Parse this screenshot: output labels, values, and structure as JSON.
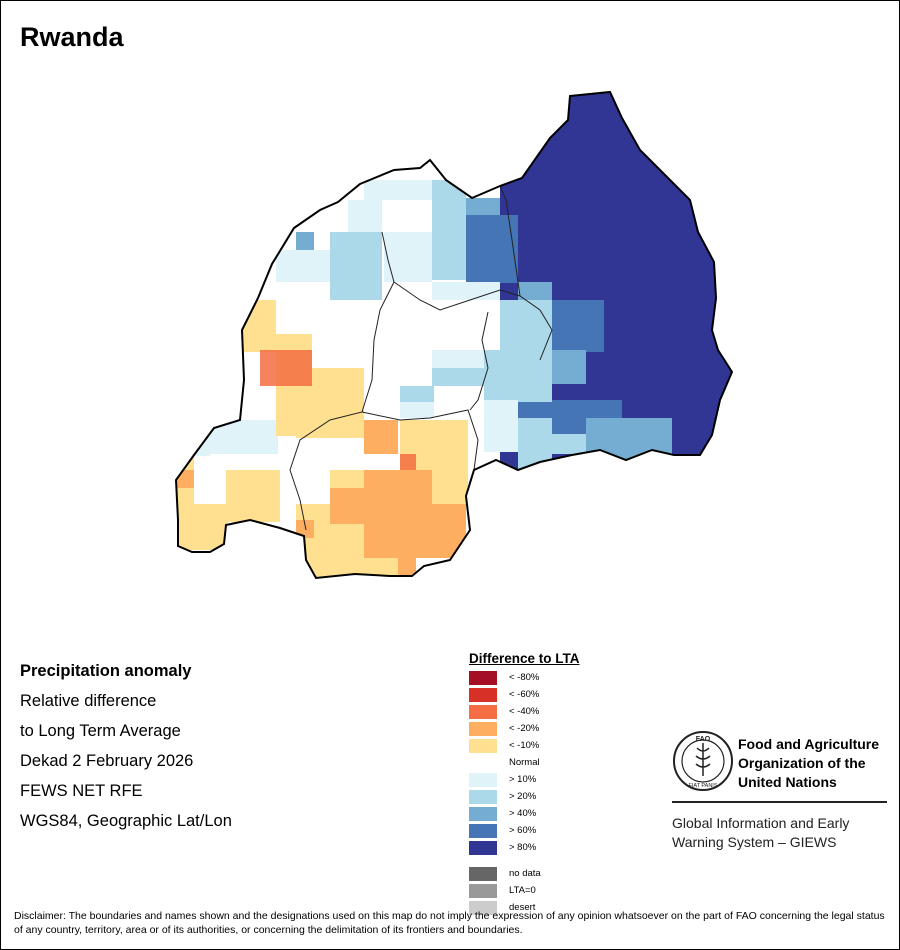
{
  "title": "Rwanda",
  "info": {
    "lines": [
      "Precipitation anomaly",
      "Relative difference",
      "to Long Term Average",
      "Dekad 2 February 2026",
      "FEWS NET RFE",
      "WGS84, Geographic Lat/Lon"
    ]
  },
  "legend": {
    "title": "Difference to LTA",
    "items": [
      {
        "label": "< -80%",
        "color": "#a50f26"
      },
      {
        "label": "< -60%",
        "color": "#d73027"
      },
      {
        "label": "< -40%",
        "color": "#f46d43"
      },
      {
        "label": "< -20%",
        "color": "#fdae61"
      },
      {
        "label": "< -10%",
        "color": "#fee090"
      },
      {
        "label": "Normal",
        "color": "#ffffff"
      },
      {
        "label": "> 10%",
        "color": "#e0f3f8"
      },
      {
        "label": "> 20%",
        "color": "#abd9e9"
      },
      {
        "label": "> 40%",
        "color": "#74add1"
      },
      {
        "label": "> 60%",
        "color": "#4575b4"
      },
      {
        "label": "> 80%",
        "color": "#313695"
      }
    ],
    "extras": [
      {
        "label": "no data",
        "color": "#666666"
      },
      {
        "label": "LTA=0",
        "color": "#999999"
      },
      {
        "label": "desert",
        "color": "#cccccc"
      }
    ]
  },
  "fao": {
    "name_lines": [
      "Food and Agriculture",
      "Organization of the",
      "United Nations"
    ],
    "logo_text": [
      "FAO",
      "FIAT PANIS"
    ],
    "giews_lines": [
      "Global Information and Early",
      "Warning System – GIEWS"
    ]
  },
  "disclaimer": "Disclaimer: The boundaries and names shown and the designations used on this map do not imply the expression of any opinion whatsoever on the part of FAO concerning the legal status of any country, territory, area or of its authorities, or concerning the delimitation of its frontiers and boundaries."
}
